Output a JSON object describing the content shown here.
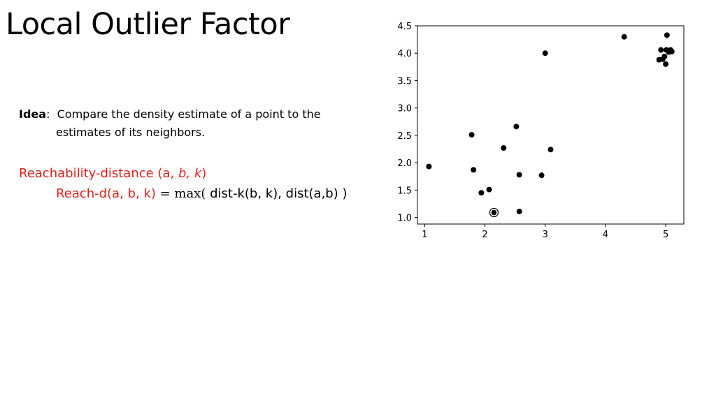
{
  "slide": {
    "title": "Local Outlier Factor",
    "idea_label": "Idea",
    "idea_sep": ":",
    "idea_text_1": "Compare the density estimate of a point to the",
    "idea_text_2": "estimates of its neighbors.",
    "reach_prefix": "Reachability-distance (a, ",
    "reach_b": "b, k",
    "reach_suffix": ")",
    "reach_d": "Reach-d(a, b, k)",
    "equals": "=",
    "max_fn": "max(",
    "reach_args": " dist-k(b, k), dist(a,b) )"
  },
  "chart_data": {
    "type": "scatter",
    "xlim": [
      0.88,
      5.3
    ],
    "ylim": [
      0.88,
      4.5
    ],
    "xticks": [
      1,
      2,
      3,
      4,
      5
    ],
    "xtick_labels": [
      "1",
      "2",
      "3",
      "4",
      "5"
    ],
    "yticks": [
      1.0,
      1.5,
      2.0,
      2.5,
      3.0,
      3.5,
      4.0,
      4.5
    ],
    "ytick_labels": [
      "1.0",
      "1.5",
      "2.0",
      "2.5",
      "3.0",
      "3.5",
      "4.0",
      "4.5"
    ],
    "grid": false,
    "points": [
      {
        "x": 1.07,
        "y": 1.93
      },
      {
        "x": 1.78,
        "y": 2.51
      },
      {
        "x": 1.81,
        "y": 1.87
      },
      {
        "x": 1.94,
        "y": 1.45
      },
      {
        "x": 2.07,
        "y": 1.51
      },
      {
        "x": 2.31,
        "y": 2.27
      },
      {
        "x": 2.52,
        "y": 2.66
      },
      {
        "x": 2.57,
        "y": 1.78
      },
      {
        "x": 2.57,
        "y": 1.11
      },
      {
        "x": 2.94,
        "y": 1.77
      },
      {
        "x": 3.0,
        "y": 4.0
      },
      {
        "x": 3.09,
        "y": 2.24
      },
      {
        "x": 4.31,
        "y": 4.3
      },
      {
        "x": 4.89,
        "y": 3.88
      },
      {
        "x": 4.92,
        "y": 4.06
      },
      {
        "x": 4.95,
        "y": 3.89
      },
      {
        "x": 4.98,
        "y": 3.94
      },
      {
        "x": 5.0,
        "y": 3.8
      },
      {
        "x": 5.01,
        "y": 4.06
      },
      {
        "x": 5.02,
        "y": 4.33
      },
      {
        "x": 5.05,
        "y": 4.02
      },
      {
        "x": 5.08,
        "y": 4.06
      },
      {
        "x": 5.1,
        "y": 4.03
      }
    ],
    "highlighted": {
      "x": 2.15,
      "y": 1.09
    },
    "marker_color": "#000000"
  }
}
